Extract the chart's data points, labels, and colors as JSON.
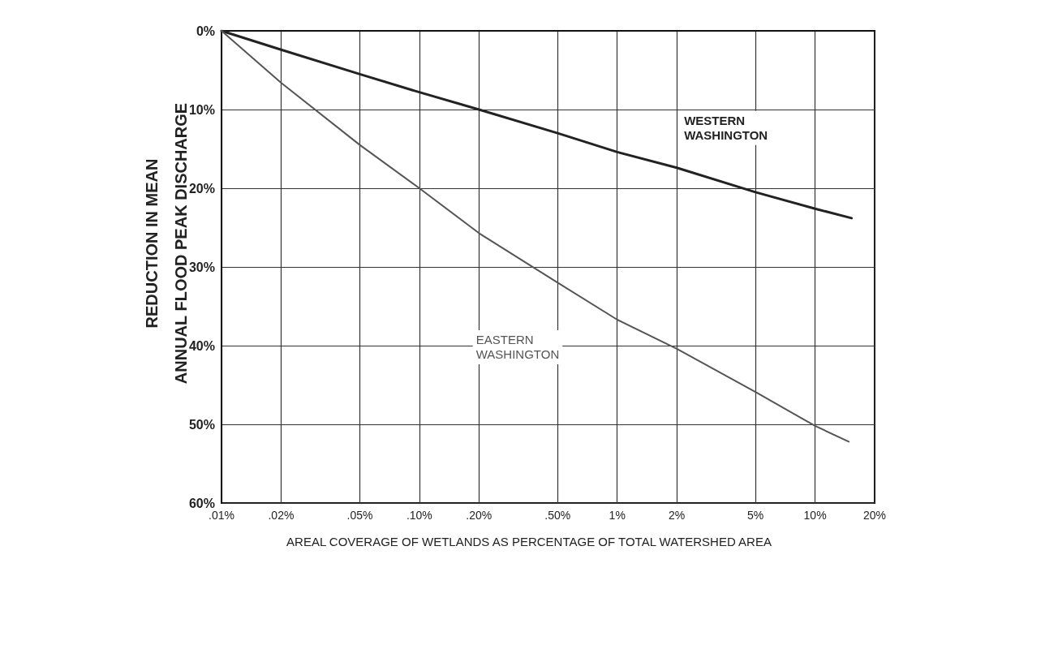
{
  "chart_data": {
    "type": "line",
    "xlabel": "AREAL COVERAGE OF WETLANDS AS PERCENTAGE OF TOTAL WATERSHED AREA",
    "ylabel": "REDUCTION IN MEAN\nANNUAL FLOOD PEAK DISCHARGE",
    "log": "x",
    "xlim": [
      0.01,
      20
    ],
    "xticks": [
      {
        "value": 0.01,
        "label": ".01%"
      },
      {
        "value": 0.02,
        "label": ".02%"
      },
      {
        "value": 0.05,
        "label": ".05%"
      },
      {
        "value": 0.1,
        "label": ".10%"
      },
      {
        "value": 0.2,
        "label": ".20%"
      },
      {
        "value": 0.5,
        "label": ".50%"
      },
      {
        "value": 1,
        "label": "1%"
      },
      {
        "value": 2,
        "label": "2%"
      },
      {
        "value": 5,
        "label": "5%"
      },
      {
        "value": 10,
        "label": "10%"
      },
      {
        "value": 20,
        "label": "20%"
      }
    ],
    "ylim": [
      60,
      0
    ],
    "yticks": [
      {
        "value": 0,
        "label": "0%"
      },
      {
        "value": 10,
        "label": "10%"
      },
      {
        "value": 20,
        "label": "20%"
      },
      {
        "value": 30,
        "label": "30%"
      },
      {
        "value": 40,
        "label": "40%"
      },
      {
        "value": 50,
        "label": "50%"
      },
      {
        "value": 60,
        "label": "60%"
      }
    ],
    "grid": true,
    "marker": "none",
    "line_style": "solid",
    "series": [
      {
        "name": "WESTERN\nWASHINGTON",
        "color": "#222222",
        "x": [
          0.01,
          0.02,
          0.05,
          0.1,
          0.2,
          0.5,
          1,
          2,
          5,
          10,
          15.3
        ],
        "values": [
          0,
          2.4,
          5.5,
          7.8,
          10,
          13,
          15.4,
          17.4,
          20.5,
          22.6,
          23.8
        ]
      },
      {
        "name": "EASTERN\nWASHINGTON",
        "color": "#555555",
        "x": [
          0.01,
          0.02,
          0.05,
          0.1,
          0.2,
          0.5,
          1,
          2,
          5,
          10,
          14.8
        ],
        "values": [
          0,
          6.6,
          14.5,
          20,
          25.7,
          32,
          36.7,
          40.4,
          45.9,
          50.2,
          52.2
        ]
      }
    ]
  }
}
